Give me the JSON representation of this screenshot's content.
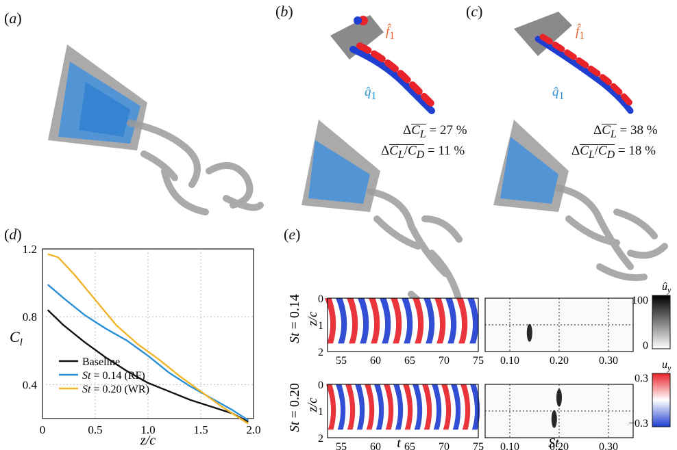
{
  "panels": {
    "a": "a",
    "b": "b",
    "c": "c",
    "d": "d",
    "e": "e"
  },
  "mode_labels": {
    "f_hat": "f̂",
    "f_sub": "1",
    "q_hat": "q̂",
    "q_sub": "1"
  },
  "panel_b": {
    "dCL_value": "27 %",
    "dCLCD_value": "11 %"
  },
  "panel_c": {
    "dCL_value": "38 %",
    "dCLCD_value": "18 %"
  },
  "colors": {
    "baseline": "#111111",
    "rf": "#2a8fd6",
    "wr": "#f0b428",
    "mode_red": "#e8232a",
    "mode_blue": "#1f3fd0",
    "surface_blue": "#3d8fe0",
    "surface_gray": "#9a9a9a"
  },
  "chart_data": {
    "type": "line",
    "xlabel": "z/c",
    "ylabel": "C_l",
    "xlim": [
      0,
      2.0
    ],
    "ylim": [
      0.2,
      1.2
    ],
    "xticks": [
      "0",
      "0.5",
      "1.0",
      "1.5",
      "2.0"
    ],
    "yticks": [
      "0.4",
      "0.8",
      "1.2"
    ],
    "grid": true,
    "legend_placement": "bottom-left",
    "series": [
      {
        "name": "Baseline",
        "x": [
          0.05,
          0.2,
          0.4,
          0.6,
          0.8,
          1.0,
          1.2,
          1.4,
          1.6,
          1.8,
          1.95
        ],
        "y": [
          0.84,
          0.75,
          0.65,
          0.56,
          0.48,
          0.41,
          0.36,
          0.31,
          0.27,
          0.23,
          0.18
        ]
      },
      {
        "name": "St = 0.14 (RF)",
        "x": [
          0.05,
          0.2,
          0.4,
          0.6,
          0.8,
          1.0,
          1.2,
          1.4,
          1.6,
          1.8,
          1.95
        ],
        "y": [
          0.99,
          0.91,
          0.81,
          0.73,
          0.66,
          0.57,
          0.47,
          0.39,
          0.32,
          0.25,
          0.19
        ]
      },
      {
        "name": "St = 0.20 (WR)",
        "x": [
          0.05,
          0.15,
          0.3,
          0.5,
          0.7,
          0.9,
          1.1,
          1.3,
          1.5,
          1.7,
          1.95
        ],
        "y": [
          1.17,
          1.15,
          1.05,
          0.9,
          0.75,
          0.64,
          0.55,
          0.45,
          0.36,
          0.27,
          0.17
        ]
      }
    ]
  },
  "panel_e": {
    "row_labels": [
      "St = 0.14",
      "St = 0.20"
    ],
    "zc_label": "z/c",
    "yticks": [
      "0",
      "1",
      "2"
    ],
    "t_ticks": [
      "55",
      "60",
      "65",
      "70",
      "75"
    ],
    "t_label": "t",
    "st_ticks": [
      "0.10",
      "0.20",
      "0.30"
    ],
    "st_label": "St",
    "colorbar_top": {
      "label": "û_y",
      "max": "100",
      "min": "0"
    },
    "colorbar_bottom": {
      "label": "u_y",
      "max": "0.3",
      "min": "−0.3"
    },
    "spectrum_peaks": [
      {
        "row": 0,
        "st": 0.14,
        "z": 1.3
      },
      {
        "row": 1,
        "st": 0.19,
        "z": 1.3
      },
      {
        "row": 1,
        "st": 0.2,
        "z": 0.5
      }
    ]
  }
}
